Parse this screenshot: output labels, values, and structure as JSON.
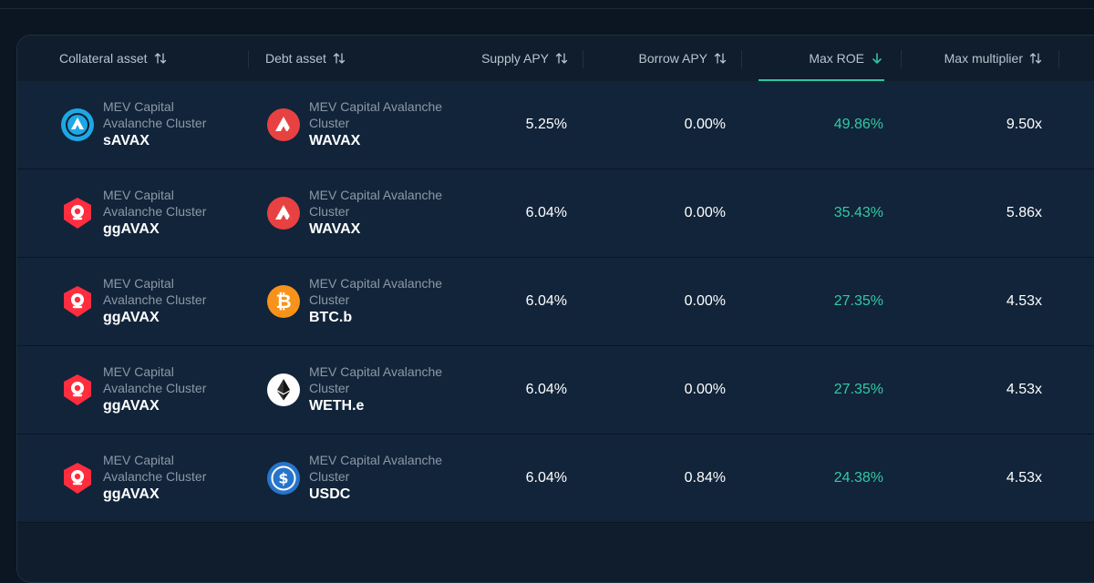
{
  "colors": {
    "background": "#0b1622",
    "panel": "#0f1d2c",
    "row": "#11243a",
    "accent_green": "#33c9a3",
    "muted_text": "#8c99a6"
  },
  "table": {
    "headers": [
      {
        "label": "Collateral asset",
        "icon": "sort-icon"
      },
      {
        "label": "Debt asset",
        "icon": "sort-icon"
      },
      {
        "label": "Supply APY",
        "icon": "sort-icon"
      },
      {
        "label": "Borrow APY",
        "icon": "sort-icon"
      },
      {
        "label": "Max ROE",
        "icon": "arrow-down-icon",
        "active": true
      },
      {
        "label": "Max multiplier",
        "icon": "sort-icon"
      }
    ],
    "rows": [
      {
        "collateral": {
          "vault": "MEV Capital Avalanche Cluster",
          "vault_l1": "MEV Capital",
          "vault_l2": "Avalanche Cluster",
          "symbol": "sAVAX",
          "icon": "savax-icon"
        },
        "debt": {
          "vault": "MEV Capital Avalanche Cluster",
          "vault_l1": "MEV Capital Avalanche",
          "vault_l2": "Cluster",
          "symbol": "WAVAX",
          "icon": "wavax-icon"
        },
        "supply_apy": "5.25%",
        "borrow_apy": "0.00%",
        "max_roe": "49.86%",
        "max_multiplier": "9.50x"
      },
      {
        "collateral": {
          "vault": "MEV Capital Avalanche Cluster",
          "vault_l1": "MEV Capital",
          "vault_l2": "Avalanche Cluster",
          "symbol": "ggAVAX",
          "icon": "ggavax-icon"
        },
        "debt": {
          "vault": "MEV Capital Avalanche Cluster",
          "vault_l1": "MEV Capital Avalanche",
          "vault_l2": "Cluster",
          "symbol": "WAVAX",
          "icon": "wavax-icon"
        },
        "supply_apy": "6.04%",
        "borrow_apy": "0.00%",
        "max_roe": "35.43%",
        "max_multiplier": "5.86x"
      },
      {
        "collateral": {
          "vault": "MEV Capital Avalanche Cluster",
          "vault_l1": "MEV Capital",
          "vault_l2": "Avalanche Cluster",
          "symbol": "ggAVAX",
          "icon": "ggavax-icon"
        },
        "debt": {
          "vault": "MEV Capital Avalanche Cluster",
          "vault_l1": "MEV Capital Avalanche",
          "vault_l2": "Cluster",
          "symbol": "BTC.b",
          "icon": "btcb-icon"
        },
        "supply_apy": "6.04%",
        "borrow_apy": "0.00%",
        "max_roe": "27.35%",
        "max_multiplier": "4.53x"
      },
      {
        "collateral": {
          "vault": "MEV Capital Avalanche Cluster",
          "vault_l1": "MEV Capital",
          "vault_l2": "Avalanche Cluster",
          "symbol": "ggAVAX",
          "icon": "ggavax-icon"
        },
        "debt": {
          "vault": "MEV Capital Avalanche Cluster",
          "vault_l1": "MEV Capital Avalanche",
          "vault_l2": "Cluster",
          "symbol": "WETH.e",
          "icon": "weth-icon"
        },
        "supply_apy": "6.04%",
        "borrow_apy": "0.00%",
        "max_roe": "27.35%",
        "max_multiplier": "4.53x"
      },
      {
        "collateral": {
          "vault": "MEV Capital Avalanche Cluster",
          "vault_l1": "MEV Capital",
          "vault_l2": "Avalanche Cluster",
          "symbol": "ggAVAX",
          "icon": "ggavax-icon"
        },
        "debt": {
          "vault": "MEV Capital Avalanche Cluster",
          "vault_l1": "MEV Capital Avalanche",
          "vault_l2": "Cluster",
          "symbol": "USDC",
          "icon": "usdc-icon"
        },
        "supply_apy": "6.04%",
        "borrow_apy": "0.84%",
        "max_roe": "24.38%",
        "max_multiplier": "4.53x"
      }
    ]
  }
}
